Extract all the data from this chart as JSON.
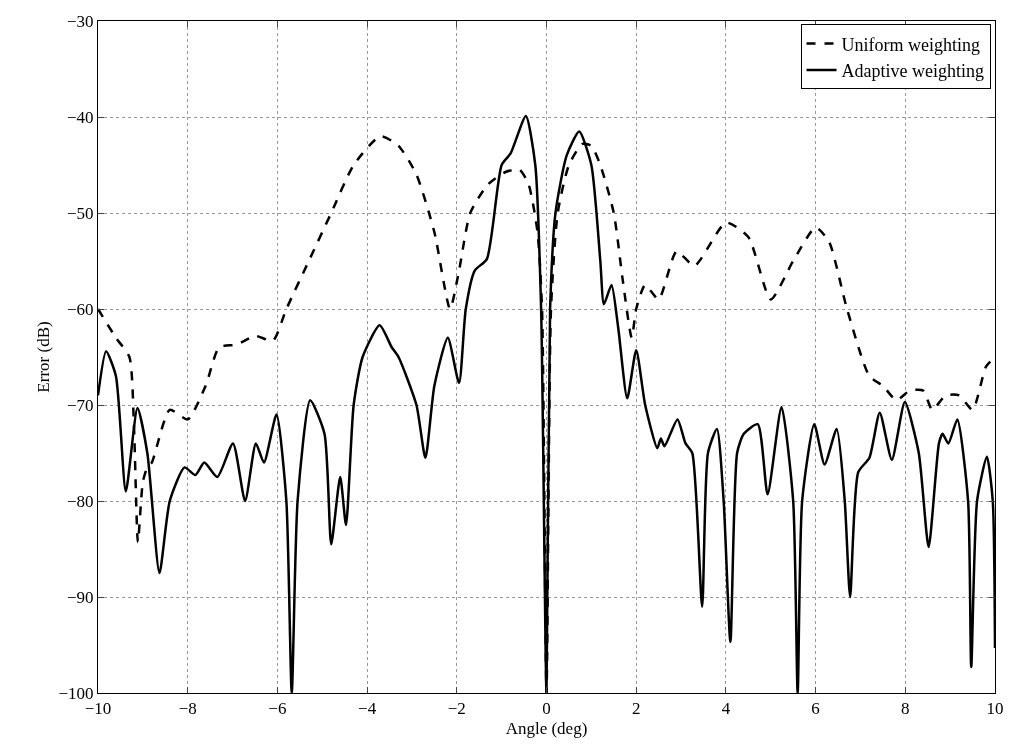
{
  "chart_data": {
    "type": "line",
    "xlabel": "Angle (deg)",
    "ylabel": "Error (dB)",
    "xlim": [
      -10,
      10
    ],
    "xticks": [
      -10,
      -8,
      -6,
      -4,
      -2,
      0,
      2,
      4,
      6,
      8,
      10
    ],
    "ylim": [
      -100,
      -30
    ],
    "yticks": [
      -100,
      -90,
      -80,
      -70,
      -60,
      -50,
      -40,
      -30
    ],
    "grid": true,
    "legend": "top right",
    "marker": "none",
    "series": [
      {
        "name": "Uniform weighting",
        "color": "#000000",
        "line_style": "dashed",
        "x": [
          -10,
          -9.6,
          -9.3,
          -9.2,
          -9.11,
          -9.0,
          -8.9,
          -8.8,
          -8.4,
          -8.0,
          -7.6,
          -7.3,
          -6.9,
          -6.5,
          -6.1,
          -5.8,
          -5.3,
          -4.8,
          -4.3,
          -3.7,
          -3.3,
          -2.9,
          -2.5,
          -2.15,
          -1.95,
          -1.7,
          -1.3,
          -0.9,
          -0.6,
          -0.4,
          -0.2,
          -0.1,
          0,
          0.1,
          0.25,
          0.5,
          0.8,
          1.0,
          1.2,
          1.5,
          1.7,
          1.9,
          2.0,
          2.2,
          2.5,
          2.9,
          3.3,
          4.0,
          4.5,
          5.0,
          5.5,
          6.0,
          6.3,
          6.7,
          7.2,
          7.5,
          7.8,
          8.1,
          8.4,
          8.6,
          8.9,
          9.2,
          9.5,
          9.8,
          10
        ],
        "values": [
          -60,
          -63,
          -65,
          -72,
          -84.3,
          -78,
          -76.5,
          -76,
          -70.5,
          -71.5,
          -68,
          -64,
          -63.7,
          -62.8,
          -63.3,
          -60,
          -55,
          -50,
          -45,
          -42,
          -43,
          -46,
          -52,
          -60,
          -56,
          -50,
          -47,
          -45.7,
          -45.5,
          -47,
          -52,
          -60,
          -100,
          -60,
          -50,
          -45,
          -42.8,
          -43,
          -45,
          -50,
          -57,
          -63,
          -60,
          -57.5,
          -59,
          -54,
          -55.5,
          -51,
          -52.5,
          -59,
          -55,
          -51.5,
          -53,
          -60,
          -67,
          -68,
          -69.5,
          -68.5,
          -68.5,
          -70.5,
          -69,
          -69,
          -70.5,
          -66,
          -65
        ]
      },
      {
        "name": "Adaptive weighting",
        "color": "#000000",
        "line_style": "solid",
        "x": [
          -10,
          -9.82,
          -9.6,
          -9.38,
          -9.12,
          -8.9,
          -8.63,
          -8.4,
          -8.07,
          -7.83,
          -7.63,
          -7.34,
          -6.99,
          -6.72,
          -6.48,
          -6.3,
          -6.02,
          -5.8,
          -5.68,
          -5.55,
          -5.27,
          -4.95,
          -4.8,
          -4.6,
          -4.47,
          -4.3,
          -4.1,
          -3.72,
          -3.45,
          -3.3,
          -2.9,
          -2.7,
          -2.5,
          -2.2,
          -1.95,
          -1.8,
          -1.6,
          -1.33,
          -1.0,
          -0.8,
          -0.46,
          -0.25,
          -0.12,
          0,
          0.08,
          0.2,
          0.45,
          0.73,
          1.0,
          1.2,
          1.28,
          1.45,
          1.6,
          1.8,
          2.0,
          2.2,
          2.47,
          2.55,
          2.63,
          2.92,
          3.1,
          3.25,
          3.47,
          3.6,
          3.8,
          3.95,
          4.1,
          4.25,
          4.4,
          4.71,
          4.93,
          5.24,
          5.5,
          5.6,
          5.7,
          5.97,
          6.2,
          6.47,
          6.65,
          6.77,
          6.95,
          7.2,
          7.43,
          7.7,
          7.99,
          8.3,
          8.52,
          8.75,
          8.83,
          8.96,
          9.16,
          9.4,
          9.47,
          9.6,
          9.82,
          9.95,
          10
        ],
        "values": [
          -69,
          -64.4,
          -67,
          -79,
          -70.3,
          -75,
          -87.5,
          -80,
          -76.5,
          -77.3,
          -76,
          -77.5,
          -74,
          -80,
          -74,
          -76,
          -71,
          -80,
          -100,
          -80,
          -69.5,
          -73,
          -84.5,
          -77.5,
          -82.5,
          -70,
          -65,
          -61.7,
          -64,
          -65,
          -70,
          -75.5,
          -68,
          -63,
          -67.7,
          -60,
          -56,
          -54.8,
          -45,
          -43.8,
          -39.9,
          -45,
          -60,
          -100,
          -60,
          -50,
          -44,
          -41.5,
          -45,
          -55,
          -59.5,
          -57.5,
          -62,
          -69.3,
          -64.3,
          -70,
          -74.5,
          -73.5,
          -74.3,
          -71.5,
          -74,
          -75,
          -91,
          -75,
          -72.5,
          -80,
          -94.7,
          -75,
          -73,
          -72,
          -79.3,
          -70.2,
          -80,
          -100,
          -80,
          -72,
          -76.2,
          -72.5,
          -80,
          -90,
          -77,
          -75.5,
          -70.8,
          -75.7,
          -69.7,
          -75,
          -84.8,
          -74,
          -73,
          -74,
          -71.5,
          -80,
          -97.3,
          -80,
          -75.4,
          -80,
          -95.3
        ]
      }
    ]
  }
}
